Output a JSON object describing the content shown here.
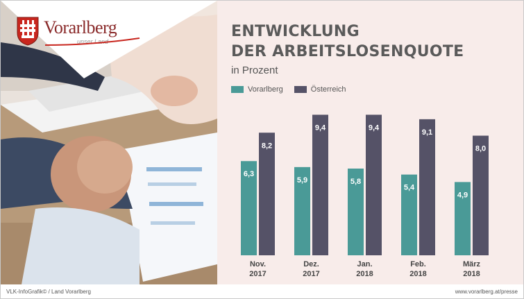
{
  "brand": {
    "name": "Vorarlberg",
    "tagline": "unser Land"
  },
  "colors": {
    "vorarlberg": "#4a9a97",
    "oesterreich": "#555267",
    "background": "#f8ecea"
  },
  "footer": {
    "left": "VLK-InfoGrafik©   /   Land Vorarlberg",
    "right": "www.vorarlberg.at/presse"
  },
  "chart_data": {
    "type": "bar",
    "title_line1": "ENTWICKLUNG",
    "title_line2": "DER ARBEITSLOSENQUOTE",
    "subtitle": "in Prozent",
    "categories": [
      {
        "month": "Nov.",
        "year": "2017"
      },
      {
        "month": "Dez.",
        "year": "2017"
      },
      {
        "month": "Jan.",
        "year": "2018"
      },
      {
        "month": "Feb.",
        "year": "2018"
      },
      {
        "month": "März",
        "year": "2018"
      }
    ],
    "series": [
      {
        "name": "Vorarlberg",
        "values": [
          6.3,
          5.9,
          5.8,
          5.4,
          4.9
        ],
        "labels": [
          "6,3",
          "5,9",
          "5,8",
          "5,4",
          "4,9"
        ]
      },
      {
        "name": "Österreich",
        "values": [
          8.2,
          9.4,
          9.4,
          9.1,
          8.0
        ],
        "labels": [
          "8,2",
          "9,4",
          "9,4",
          "9,1",
          "8,0"
        ]
      }
    ],
    "ylim": [
      0,
      10.3
    ],
    "legend": "top-left"
  }
}
